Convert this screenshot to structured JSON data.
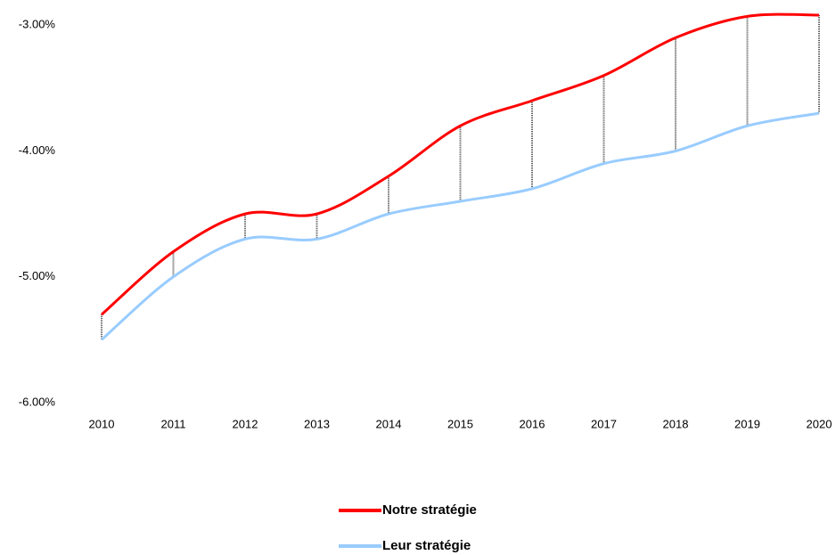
{
  "chart_data": {
    "type": "line",
    "x": [
      2010,
      2011,
      2012,
      2013,
      2014,
      2015,
      2016,
      2017,
      2018,
      2019,
      2020
    ],
    "series": [
      {
        "name": "Notre stratégie",
        "color": "#ff0000",
        "values": [
          -5.3,
          -4.8,
          -4.5,
          -4.5,
          -4.2,
          -3.8,
          -3.6,
          -3.4,
          -3.1,
          -2.93,
          -2.92
        ]
      },
      {
        "name": "Leur stratégie",
        "color": "#99ccff",
        "values": [
          -5.5,
          -5.0,
          -4.7,
          -4.7,
          -4.5,
          -4.4,
          -4.3,
          -4.1,
          -4.0,
          -3.8,
          -3.7
        ]
      }
    ],
    "xlim": [
      2010,
      2020
    ],
    "xticks": [
      2010,
      2011,
      2012,
      2013,
      2014,
      2015,
      2016,
      2017,
      2018,
      2019,
      2020
    ],
    "ylim": [
      -6,
      -2.8
    ],
    "yticks": [
      {
        "value": -6,
        "label": "-6.00%"
      },
      {
        "value": -5,
        "label": "-5.00%"
      },
      {
        "value": -4,
        "label": "-4.00%"
      },
      {
        "value": -3,
        "label": "-3.00%"
      }
    ],
    "grid": false,
    "legend": "bottom"
  }
}
